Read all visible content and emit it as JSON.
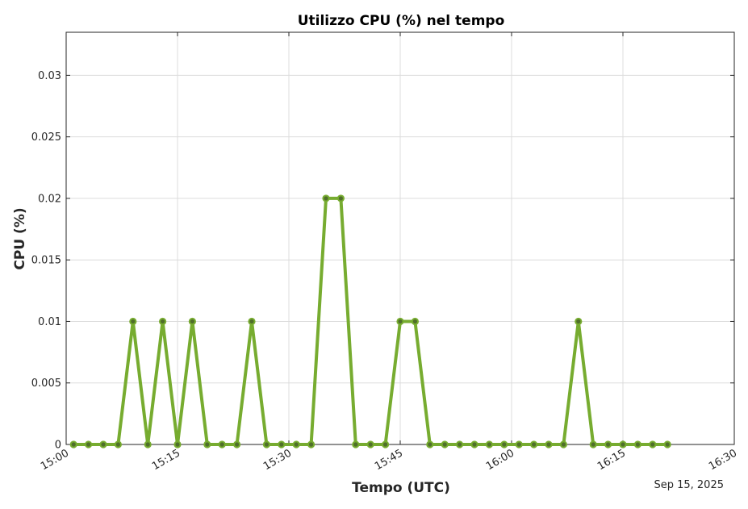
{
  "chart_data": {
    "type": "line",
    "title": "Utilizzo CPU (%) nel tempo",
    "xlabel": "Tempo (UTC)",
    "ylabel": "CPU (%)",
    "date_note": "Sep 15, 2025",
    "x_ticks": [
      "15:00",
      "15:15",
      "15:30",
      "15:45",
      "16:00",
      "16:15",
      "16:30"
    ],
    "y_ticks": [
      "0",
      "0.005",
      "0.01",
      "0.015",
      "0.02",
      "0.025",
      "0.03"
    ],
    "xlim": [
      "15:00",
      "16:30"
    ],
    "ylim": [
      0,
      0.0335
    ],
    "grid": true,
    "series": [
      {
        "color": "#77ac30",
        "x": [
          "15:01",
          "15:03",
          "15:05",
          "15:07",
          "15:09",
          "15:11",
          "15:13",
          "15:15",
          "15:17",
          "15:19",
          "15:21",
          "15:23",
          "15:25",
          "15:27",
          "15:29",
          "15:31",
          "15:33",
          "15:35",
          "15:37",
          "15:39",
          "15:41",
          "15:43",
          "15:45",
          "15:47",
          "15:49",
          "15:51",
          "15:53",
          "15:55",
          "15:57",
          "15:59",
          "16:01",
          "16:03",
          "16:05",
          "16:07",
          "16:09",
          "16:11",
          "16:13",
          "16:15",
          "16:17",
          "16:19",
          "16:21"
        ],
        "values": [
          0,
          0,
          0,
          0,
          0.01,
          0,
          0.01,
          0,
          0.01,
          0,
          0,
          0,
          0.01,
          0,
          0,
          0,
          0,
          0.02,
          0.02,
          0,
          0,
          0,
          0.01,
          0.01,
          0,
          0,
          0,
          0,
          0,
          0,
          0,
          0,
          0,
          0,
          0.01,
          0,
          0,
          0,
          0,
          0,
          0
        ]
      }
    ]
  }
}
